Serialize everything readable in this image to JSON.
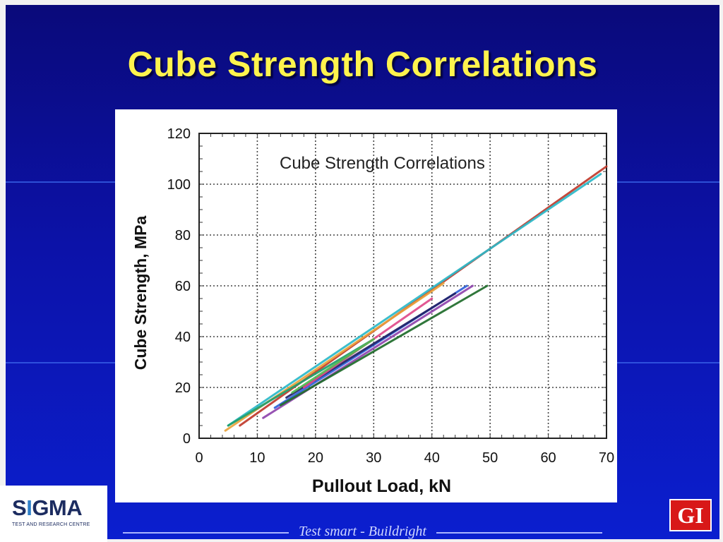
{
  "slide": {
    "title": "Cube Strength Correlations",
    "footer": "Test smart - Buildright",
    "logos": {
      "publisher_badge": "GI",
      "brand": "SIGMA",
      "brand_tagline": "TEST AND RESEARCH CENTRE"
    },
    "colors": {
      "background": "#0c12a8",
      "title": "#fff34d",
      "badge": "#d81818"
    }
  },
  "chart_data": {
    "type": "line",
    "title": "Cube Strength Correlations",
    "xlabel": "Pullout Load, kN",
    "ylabel": "Cube Strength, MPa",
    "xlim": [
      0,
      70
    ],
    "ylim": [
      0,
      120
    ],
    "x_ticks": [
      "0",
      "10",
      "20",
      "30",
      "40",
      "50",
      "60",
      "70"
    ],
    "y_ticks": [
      "0",
      "20",
      "40",
      "60",
      "80",
      "100",
      "120"
    ],
    "grid": true,
    "legend": "none",
    "series": [
      {
        "color": "#c0392b",
        "x": [
          7,
          70
        ],
        "y": [
          5,
          107
        ]
      },
      {
        "color": "#e8a33c",
        "x": [
          4.5,
          42
        ],
        "y": [
          3,
          61
        ]
      },
      {
        "color": "#2bb8c8",
        "x": [
          5,
          69
        ],
        "y": [
          5,
          104
        ]
      },
      {
        "color": "#1f9e6b",
        "x": [
          5,
          30
        ],
        "y": [
          5,
          39
        ]
      },
      {
        "color": "#8e44ad",
        "x": [
          11,
          47
        ],
        "y": [
          8,
          60
        ]
      },
      {
        "color": "#2e5fd9",
        "x": [
          13,
          46
        ],
        "y": [
          12,
          60
        ]
      },
      {
        "color": "#222266",
        "x": [
          15,
          44
        ],
        "y": [
          16,
          57
        ]
      },
      {
        "color": "#1e6b2a",
        "x": [
          14,
          49.5
        ],
        "y": [
          13,
          60
        ]
      },
      {
        "color": "#e04a8a",
        "x": [
          18,
          40
        ],
        "y": [
          20,
          55
        ]
      },
      {
        "color": "#4fb84f",
        "x": [
          16,
          30
        ],
        "y": [
          18,
          39
        ]
      }
    ]
  }
}
